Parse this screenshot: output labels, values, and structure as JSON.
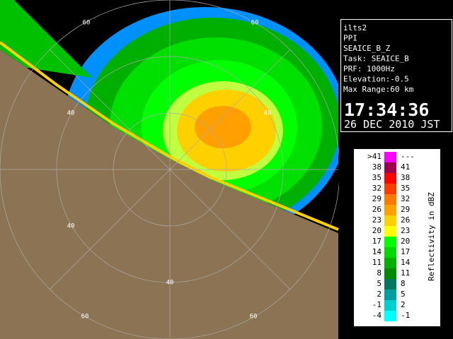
{
  "info": {
    "lines": [
      "ilts2",
      "PPI",
      "SEAICE_B_Z",
      "Task: SEAICE_B",
      "PRF: 1000Hz",
      "Elevation:-0.5",
      "Max Range:60 km"
    ],
    "time": "17:34:36",
    "date": "26 DEC 2010 JST"
  },
  "legend": {
    "title": "Reflectivity in dBZ",
    "rows": [
      {
        "color": "#ff00ff",
        "low": ">41",
        "high": "---"
      },
      {
        "color": "#a00050",
        "low": "38",
        "high": "41"
      },
      {
        "color": "#ff0000",
        "low": "35",
        "high": "38"
      },
      {
        "color": "#ff3c00",
        "low": "32",
        "high": "35"
      },
      {
        "color": "#ff7800",
        "low": "29",
        "high": "32"
      },
      {
        "color": "#ffa000",
        "low": "26",
        "high": "29"
      },
      {
        "color": "#ffd000",
        "low": "23",
        "high": "26"
      },
      {
        "color": "#ffff00",
        "low": "20",
        "high": "23"
      },
      {
        "color": "#00ff00",
        "low": "17",
        "high": "20"
      },
      {
        "color": "#00d800",
        "low": "14",
        "high": "17"
      },
      {
        "color": "#00b000",
        "low": "11",
        "high": "14"
      },
      {
        "color": "#008c00",
        "low": "8",
        "high": "11"
      },
      {
        "color": "#007860",
        "low": "5",
        "high": "8"
      },
      {
        "color": "#00a0a0",
        "low": "2",
        "high": "5"
      },
      {
        "color": "#00d0d0",
        "low": "-1",
        "high": "2"
      },
      {
        "color": "#00ffff",
        "low": "-4",
        "high": "-1"
      }
    ]
  },
  "range_labels": [
    "60",
    "60",
    "40",
    "40",
    "40",
    "40",
    "60",
    "60"
  ]
}
